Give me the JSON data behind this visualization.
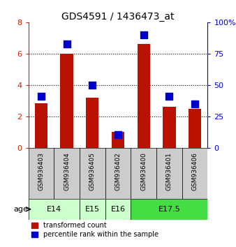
{
  "title": "GDS4591 / 1436473_at",
  "samples": [
    "GSM936403",
    "GSM936404",
    "GSM936405",
    "GSM936402",
    "GSM936400",
    "GSM936401",
    "GSM936406"
  ],
  "transformed_count": [
    2.85,
    6.0,
    3.2,
    1.05,
    6.6,
    2.65,
    2.5
  ],
  "percentile_rank": [
    41.0,
    82.5,
    50.0,
    11.0,
    90.0,
    41.0,
    35.0
  ],
  "bar_color": "#bb1100",
  "dot_color": "#0000cc",
  "age_groups": [
    {
      "label": "E14",
      "spans": [
        0,
        1
      ],
      "color": "#ccffcc"
    },
    {
      "label": "E15",
      "spans": [
        2
      ],
      "color": "#ccffcc"
    },
    {
      "label": "E16",
      "spans": [
        3
      ],
      "color": "#ccffcc"
    },
    {
      "label": "E17.5",
      "spans": [
        4,
        5,
        6
      ],
      "color": "#44dd44"
    }
  ],
  "ylim_left": [
    0,
    8
  ],
  "ylim_right": [
    0,
    100
  ],
  "yticks_left": [
    0,
    2,
    4,
    6,
    8
  ],
  "yticks_right": [
    0,
    25,
    50,
    75,
    100
  ],
  "ytick_labels_right": [
    "0",
    "25",
    "50",
    "75",
    "100%"
  ],
  "grid_values": [
    2,
    4,
    6
  ],
  "left_color": "#cc2200",
  "right_color": "#0000cc",
  "bg_color": "#ffffff",
  "sample_box_color": "#cccccc",
  "bar_width": 0.5,
  "dot_size": 55,
  "legend_labels": [
    "transformed count",
    "percentile rank within the sample"
  ]
}
